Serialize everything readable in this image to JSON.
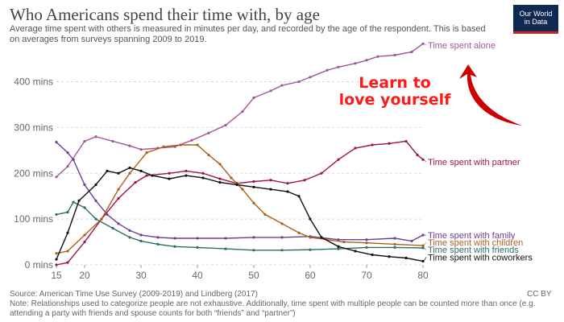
{
  "header": {
    "title": "Who Americans spend their time with, by age",
    "subtitle": "Average time spent with others is measured in minutes per day, and recorded by the age of the respondent. This is based on averages from surveys spanning 2009 to 2019.",
    "logo_lines": [
      "Our World",
      "in Data"
    ]
  },
  "annotation": {
    "lines": [
      "Learn to",
      "love yourself"
    ],
    "color": "#ff1a1a"
  },
  "footer": {
    "source": "Source: American Time Use Survey (2009-2019) and Lindberg (2017)",
    "license": "CC BY",
    "note": "Note: Relationships used to categorize people are not exhaustive. Additionally, time spent with multiple people can be counted more than once (e.g. attending a party with friends and spouse counts for both “friends” and “partner”)"
  },
  "chart_data": {
    "type": "line",
    "title": "Who Americans spend their time with, by age",
    "xlabel": "",
    "ylabel": "",
    "xlim": [
      15,
      80
    ],
    "ylim": [
      0,
      480
    ],
    "x_ticks": [
      15,
      20,
      30,
      40,
      50,
      60,
      70,
      80
    ],
    "y_ticks": [
      0,
      100,
      200,
      300,
      400
    ],
    "y_tick_labels": [
      "0 mins",
      "100 mins",
      "200 mins",
      "300 mins",
      "400 mins"
    ],
    "grid": "horizontal-dotted",
    "legend": "direct labels at line ends",
    "series": [
      {
        "name": "Time spent alone",
        "color": "#a2559c",
        "points": [
          [
            15,
            192
          ],
          [
            17,
            215
          ],
          [
            20,
            270
          ],
          [
            22,
            280
          ],
          [
            25,
            270
          ],
          [
            28,
            260
          ],
          [
            30,
            252
          ],
          [
            33,
            255
          ],
          [
            36,
            258
          ],
          [
            39,
            272
          ],
          [
            42,
            288
          ],
          [
            45,
            305
          ],
          [
            48,
            335
          ],
          [
            50,
            365
          ],
          [
            53,
            380
          ],
          [
            55,
            392
          ],
          [
            58,
            400
          ],
          [
            60,
            410
          ],
          [
            63,
            425
          ],
          [
            65,
            432
          ],
          [
            68,
            440
          ],
          [
            70,
            447
          ],
          [
            72,
            455
          ],
          [
            75,
            458
          ],
          [
            78,
            465
          ],
          [
            80,
            483
          ]
        ]
      },
      {
        "name": "Time spent with partner",
        "color": "#a2114f",
        "points": [
          [
            15,
            0
          ],
          [
            17,
            5
          ],
          [
            20,
            50
          ],
          [
            23,
            100
          ],
          [
            26,
            145
          ],
          [
            29,
            180
          ],
          [
            31,
            195
          ],
          [
            35,
            200
          ],
          [
            38,
            205
          ],
          [
            41,
            200
          ],
          [
            44,
            188
          ],
          [
            47,
            178
          ],
          [
            50,
            182
          ],
          [
            53,
            185
          ],
          [
            56,
            178
          ],
          [
            59,
            185
          ],
          [
            62,
            200
          ],
          [
            65,
            230
          ],
          [
            68,
            255
          ],
          [
            71,
            262
          ],
          [
            74,
            265
          ],
          [
            77,
            270
          ],
          [
            79,
            240
          ],
          [
            80,
            230
          ]
        ]
      },
      {
        "name": "Time spent with family",
        "color": "#6d3e91",
        "points": [
          [
            15,
            268
          ],
          [
            17,
            245
          ],
          [
            18,
            230
          ],
          [
            20,
            175
          ],
          [
            22,
            140
          ],
          [
            24,
            110
          ],
          [
            26,
            90
          ],
          [
            28,
            75
          ],
          [
            30,
            65
          ],
          [
            33,
            60
          ],
          [
            36,
            58
          ],
          [
            40,
            58
          ],
          [
            45,
            58
          ],
          [
            50,
            60
          ],
          [
            55,
            60
          ],
          [
            60,
            62
          ],
          [
            65,
            55
          ],
          [
            70,
            55
          ],
          [
            75,
            58
          ],
          [
            78,
            52
          ],
          [
            80,
            65
          ]
        ]
      },
      {
        "name": "Time spent with children",
        "color": "#b05e16",
        "points": [
          [
            15,
            25
          ],
          [
            17,
            30
          ],
          [
            20,
            65
          ],
          [
            23,
            100
          ],
          [
            26,
            165
          ],
          [
            28,
            200
          ],
          [
            31,
            245
          ],
          [
            34,
            258
          ],
          [
            37,
            262
          ],
          [
            40,
            262
          ],
          [
            42,
            240
          ],
          [
            44,
            220
          ],
          [
            46,
            190
          ],
          [
            48,
            165
          ],
          [
            50,
            135
          ],
          [
            52,
            110
          ],
          [
            55,
            90
          ],
          [
            58,
            70
          ],
          [
            60,
            60
          ],
          [
            63,
            55
          ],
          [
            66,
            50
          ],
          [
            70,
            48
          ],
          [
            75,
            45
          ],
          [
            80,
            42
          ]
        ]
      },
      {
        "name": "Time spent with friends",
        "color": "#2a6e6a",
        "points": [
          [
            15,
            110
          ],
          [
            17,
            115
          ],
          [
            18,
            137
          ],
          [
            20,
            125
          ],
          [
            22,
            100
          ],
          [
            25,
            80
          ],
          [
            28,
            60
          ],
          [
            30,
            52
          ],
          [
            33,
            45
          ],
          [
            36,
            40
          ],
          [
            40,
            38
          ],
          [
            45,
            35
          ],
          [
            50,
            32
          ],
          [
            55,
            32
          ],
          [
            60,
            33
          ],
          [
            65,
            35
          ],
          [
            70,
            38
          ],
          [
            75,
            38
          ],
          [
            80,
            37
          ]
        ]
      },
      {
        "name": "Time spent with coworkers",
        "color": "#111111",
        "points": [
          [
            15,
            12
          ],
          [
            17,
            70
          ],
          [
            19,
            140
          ],
          [
            22,
            175
          ],
          [
            24,
            205
          ],
          [
            26,
            200
          ],
          [
            28,
            212
          ],
          [
            30,
            205
          ],
          [
            32,
            195
          ],
          [
            35,
            188
          ],
          [
            38,
            195
          ],
          [
            41,
            190
          ],
          [
            44,
            180
          ],
          [
            47,
            175
          ],
          [
            50,
            170
          ],
          [
            53,
            165
          ],
          [
            56,
            160
          ],
          [
            58,
            150
          ],
          [
            60,
            100
          ],
          [
            62,
            60
          ],
          [
            65,
            40
          ],
          [
            68,
            30
          ],
          [
            71,
            22
          ],
          [
            74,
            18
          ],
          [
            77,
            15
          ],
          [
            80,
            8
          ]
        ]
      }
    ],
    "label_y_positions": [
      480,
      225,
      65,
      49,
      33,
      17
    ]
  }
}
